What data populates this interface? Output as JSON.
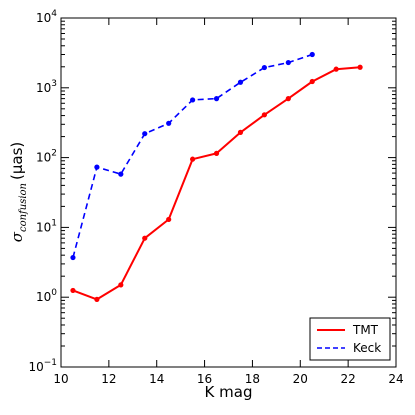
{
  "chart_data": {
    "type": "line",
    "xlabel": "K mag",
    "ylabel": {
      "symbol": "σ",
      "subscript": "confusion",
      "unit": "(μas)"
    },
    "xlim": [
      10,
      24
    ],
    "ylim": [
      0.1,
      10000
    ],
    "yscale": "log",
    "grid": false,
    "legend_position": "bottom-right",
    "x_ticks": [
      10,
      12,
      14,
      16,
      18,
      20,
      22,
      24
    ],
    "y_ticks": [
      {
        "value": 0.1,
        "mantissa": "10",
        "exp": "−1"
      },
      {
        "value": 1,
        "mantissa": "10",
        "exp": "0"
      },
      {
        "value": 10,
        "mantissa": "10",
        "exp": "1"
      },
      {
        "value": 100,
        "mantissa": "10",
        "exp": "2"
      },
      {
        "value": 1000,
        "mantissa": "10",
        "exp": "3"
      },
      {
        "value": 10000,
        "mantissa": "10",
        "exp": "4"
      }
    ],
    "series": [
      {
        "name": "TMT",
        "color": "#ff0000",
        "style": "solid",
        "x": [
          10.5,
          11.5,
          12.5,
          13.5,
          14.5,
          15.5,
          16.5,
          17.5,
          18.5,
          19.5,
          20.5,
          21.5,
          22.5
        ],
        "y": [
          1.25,
          0.93,
          1.5,
          7.0,
          13.0,
          95,
          115,
          230,
          410,
          700,
          1230,
          1850,
          1970
        ]
      },
      {
        "name": "Keck",
        "color": "#0000ff",
        "style": "dashed",
        "x": [
          10.5,
          11.5,
          12.5,
          13.5,
          14.5,
          15.5,
          16.5,
          17.5,
          18.5,
          19.5,
          20.5
        ],
        "y": [
          3.7,
          73,
          58,
          220,
          310,
          670,
          700,
          1200,
          1950,
          2300,
          3000
        ]
      }
    ]
  }
}
